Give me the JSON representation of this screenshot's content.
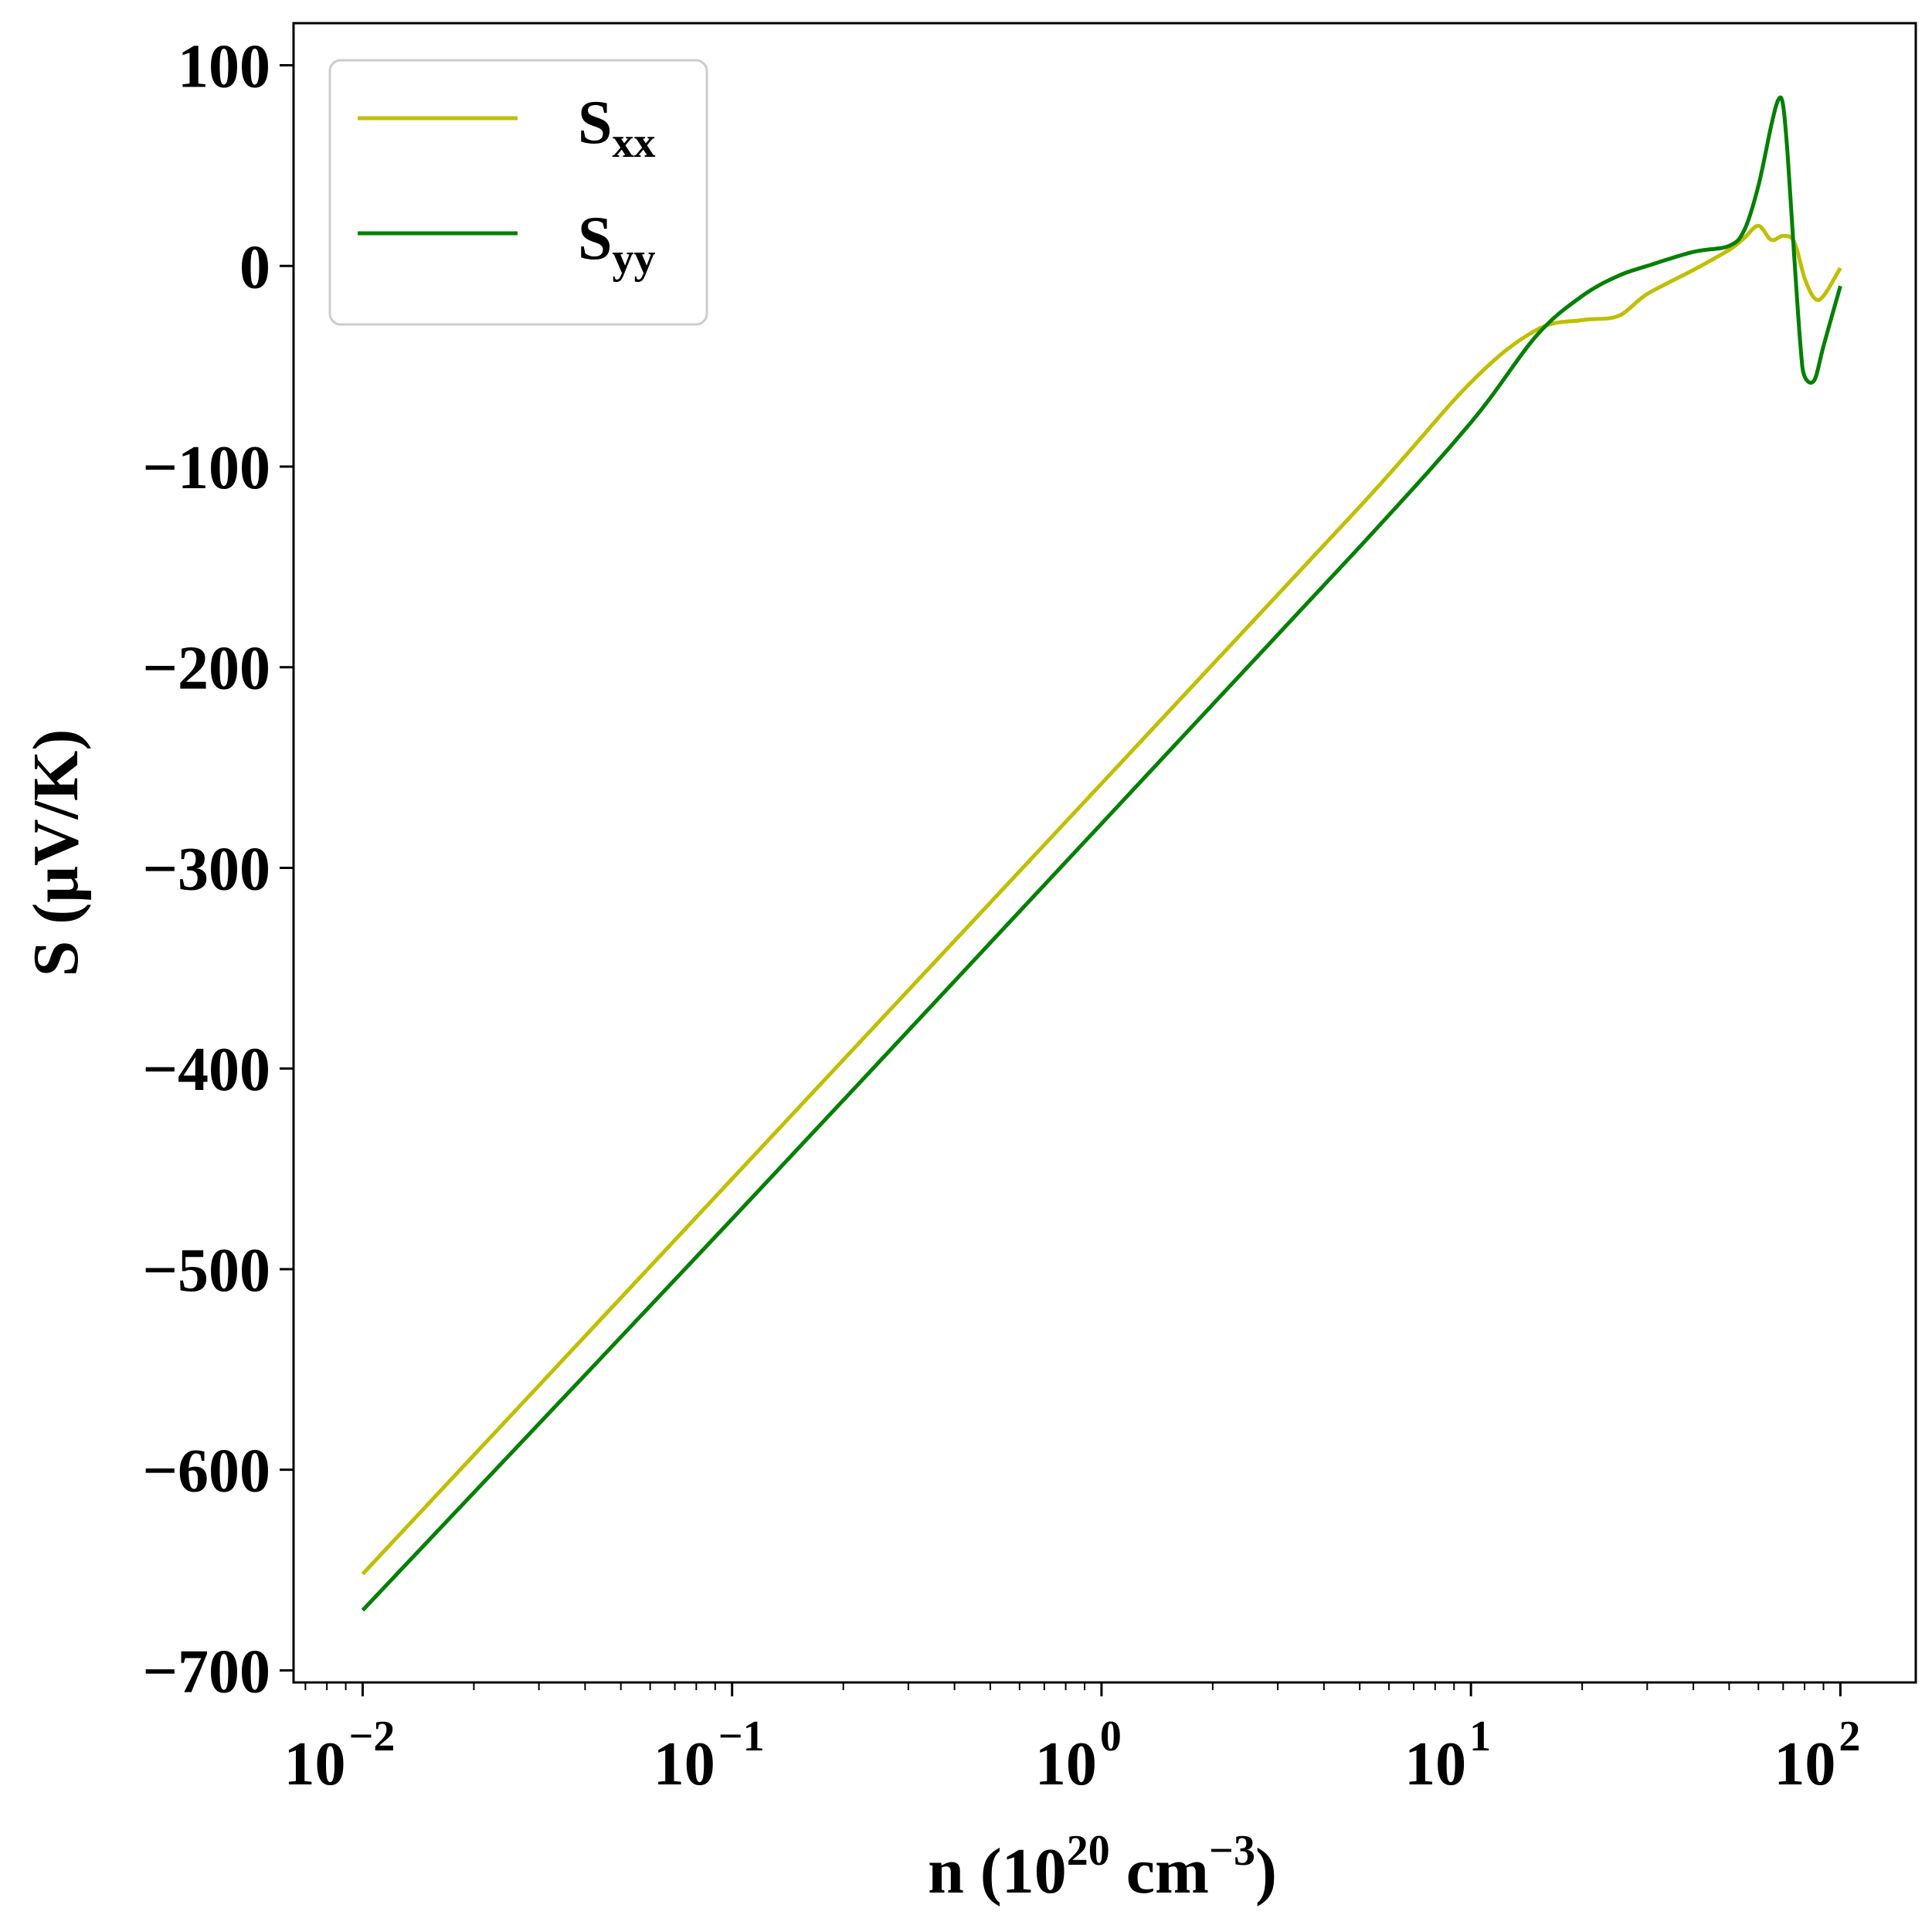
{
  "chart_data": {
    "type": "line",
    "title": "",
    "xlabel": {
      "base": "n (10",
      "exp1": "20",
      "mid": " cm",
      "exp2": "−3",
      "tail": ")"
    },
    "ylabel": "S (μV/K)",
    "xscale": "log",
    "xlim": [
      0.0065,
      160
    ],
    "ylim": [
      -706,
      121
    ],
    "x_ticks": [
      {
        "value": 0.01,
        "base": "10",
        "exp": "−2"
      },
      {
        "value": 0.1,
        "base": "10",
        "exp": "−1"
      },
      {
        "value": 1,
        "base": "10",
        "exp": "0"
      },
      {
        "value": 10,
        "base": "10",
        "exp": "1"
      },
      {
        "value": 100,
        "base": "10",
        "exp": "2"
      }
    ],
    "y_ticks": [
      {
        "value": 100,
        "label": "100"
      },
      {
        "value": 0,
        "label": "0"
      },
      {
        "value": -100,
        "label": "−100"
      },
      {
        "value": -200,
        "label": "−200"
      },
      {
        "value": -300,
        "label": "−300"
      },
      {
        "value": -400,
        "label": "−400"
      },
      {
        "value": -500,
        "label": "−500"
      },
      {
        "value": -600,
        "label": "−600"
      },
      {
        "value": -700,
        "label": "−700"
      }
    ],
    "grid": false,
    "legend_position": "top-left",
    "series": [
      {
        "name": "S",
        "sub": "xx",
        "color": "#bfbf00",
        "x": [
          0.01,
          0.1,
          1,
          5,
          10,
          15,
          20,
          25,
          30,
          40,
          50,
          55,
          60,
          65,
          70,
          75,
          80,
          85,
          90,
          100
        ],
        "y": [
          -652,
          -455,
          -258,
          -120,
          -58,
          -32,
          -27,
          -25,
          -14,
          -2,
          8,
          14,
          20,
          13,
          15,
          12,
          -6,
          -16,
          -15,
          -1
        ]
      },
      {
        "name": "S",
        "sub": "yy",
        "color": "#007f00",
        "x": [
          0.01,
          0.1,
          1,
          5,
          10,
          15,
          20,
          25,
          30,
          40,
          50,
          55,
          60,
          65,
          68,
          70,
          72,
          75,
          78,
          80,
          85,
          90,
          100
        ],
        "y": [
          -670,
          -475,
          -278,
          -140,
          -78,
          -35,
          -15,
          -5,
          0,
          7,
          10,
          18,
          40,
          70,
          83,
          80,
          55,
          5,
          -40,
          -55,
          -57,
          -40,
          -10
        ]
      }
    ]
  }
}
